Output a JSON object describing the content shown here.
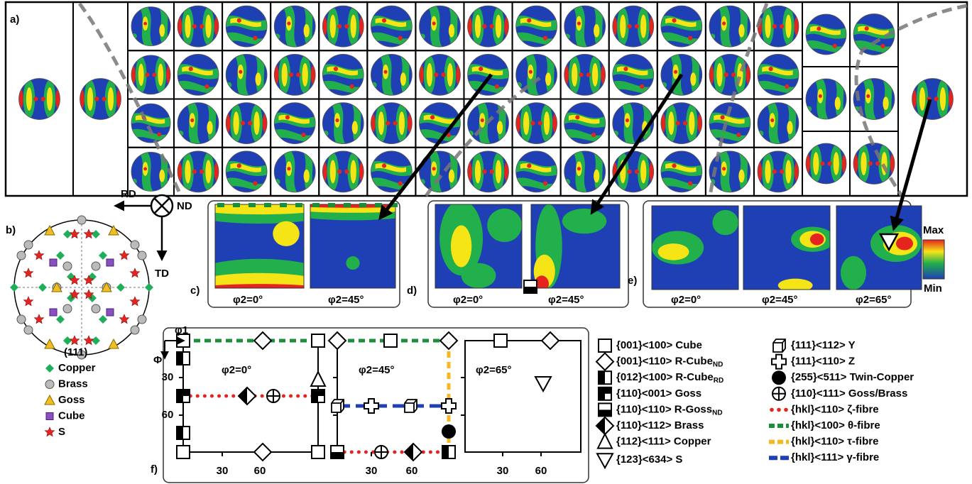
{
  "panel_labels": {
    "a": "a)",
    "b": "b)",
    "c": "c)",
    "d": "d)",
    "e": "e)",
    "f": "f)"
  },
  "pole_figure": {
    "axes": {
      "rd": "RD",
      "nd": "ND",
      "td": "TD"
    },
    "plane": "(111)",
    "legend": [
      "Copper",
      "Brass",
      "Goss",
      "Cube",
      "S"
    ]
  },
  "odf_sections": {
    "c": [
      "φ2=0°",
      "φ2=45°"
    ],
    "d": [
      "φ2=0°",
      "φ2=45°"
    ],
    "e": [
      "φ2=0°",
      "φ2=45°",
      "φ2=65°"
    ]
  },
  "colorbar": {
    "max": "Max",
    "min": "Min"
  },
  "orientation_map": {
    "axes": {
      "phi1": "φ1",
      "Phi": "Φ"
    },
    "sections": [
      "φ2=0°",
      "φ2=45°",
      "φ2=65°"
    ],
    "yticks": [
      "30",
      "60"
    ],
    "xticks": [
      "30",
      "60"
    ]
  },
  "legend": [
    {
      "text": "{001}<100> Cube"
    },
    {
      "text": "{001}<110> R-Cube",
      "sub": "ND"
    },
    {
      "text": "{012}<100> R-Cube",
      "sub": "RD"
    },
    {
      "text": "{110}<001> Goss"
    },
    {
      "text": "{110}<110> R-Goss",
      "sub": "ND"
    },
    {
      "text": "{110}<112> Brass"
    },
    {
      "text": "{112}<111> Copper"
    },
    {
      "text": "{123}<634> S"
    },
    {
      "text": "{111}<112> Y"
    },
    {
      "text": "{111}<110> Z"
    },
    {
      "text": "{255}<511> Twin-Copper"
    },
    {
      "text": "{110}<111> Goss/Brass"
    },
    {
      "text": "{hkl}<110> ζ-fibre"
    },
    {
      "text": "{hkl}<100> θ-fibre"
    },
    {
      "text": "{hkl}<110> τ-fibre"
    },
    {
      "text": "{hkl}<111> γ-fibre"
    }
  ]
}
